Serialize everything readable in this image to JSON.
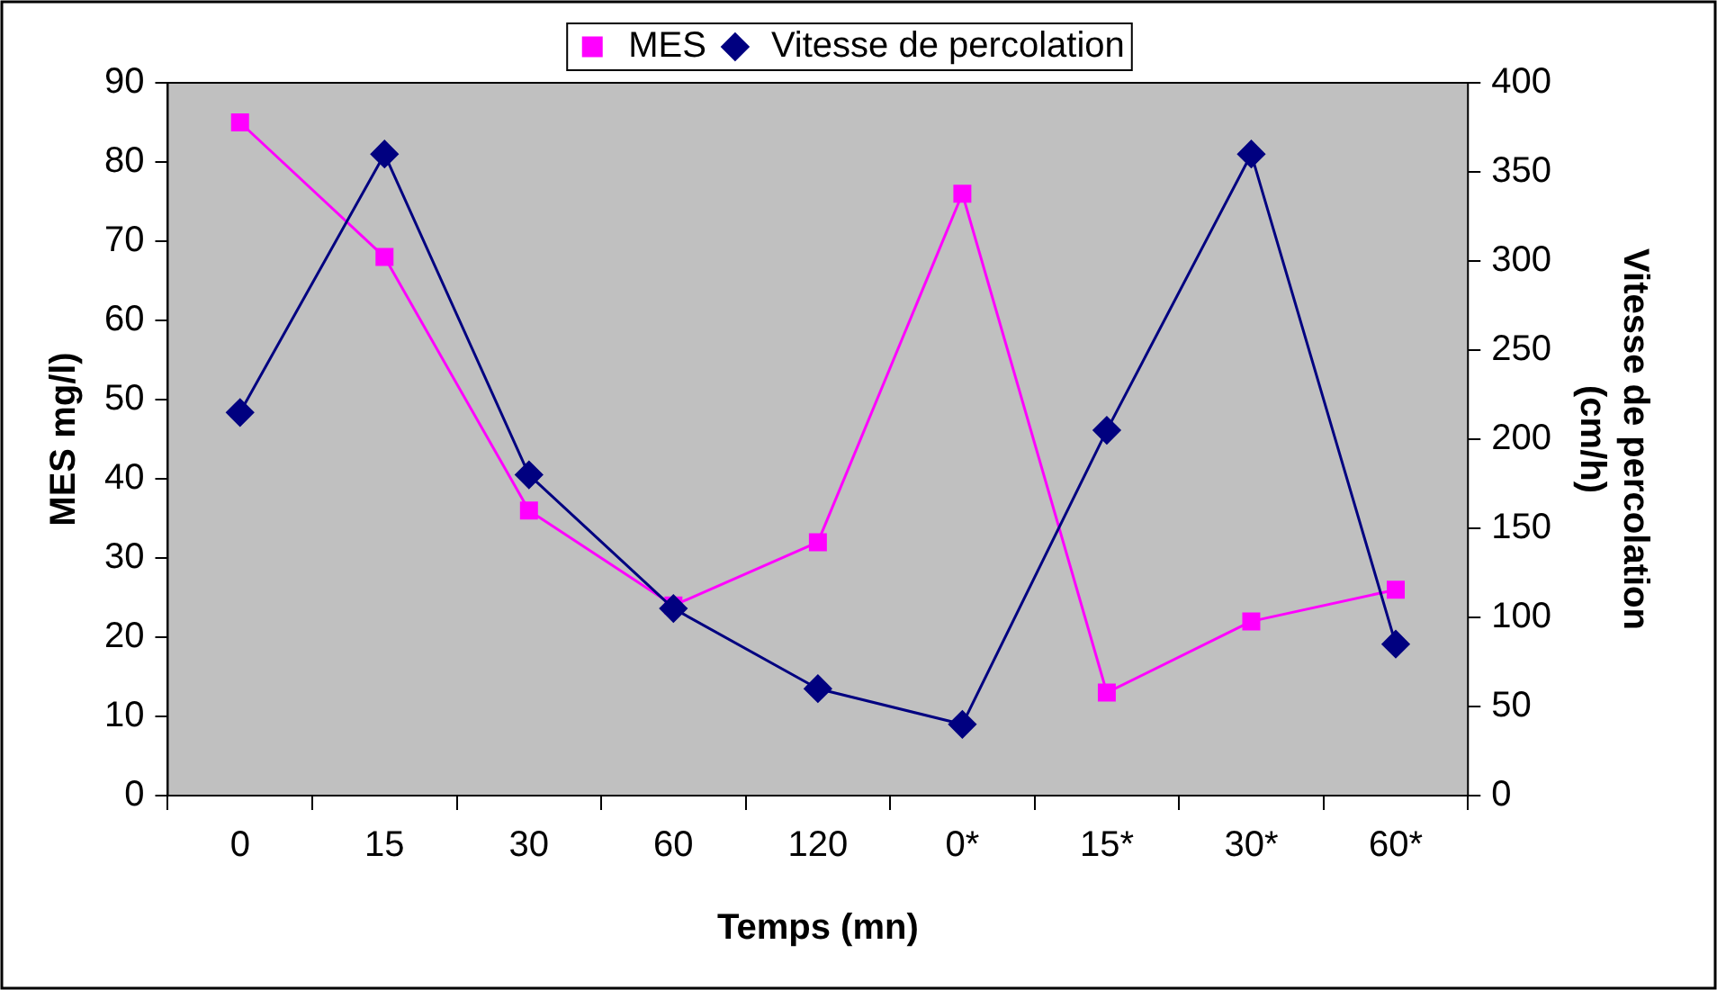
{
  "chart_data": {
    "type": "line",
    "categories": [
      "0",
      "15",
      "30",
      "60",
      "120",
      "0*",
      "15*",
      "30*",
      "60*"
    ],
    "xlabel": "Temps (mn)",
    "ylabel": "MES mg/l)",
    "y2label": "Vitesse de percolation (cm/h)",
    "ylim": [
      0,
      90
    ],
    "yticks": [
      0,
      10,
      20,
      30,
      40,
      50,
      60,
      70,
      80,
      90
    ],
    "y2lim": [
      0,
      400
    ],
    "y2ticks": [
      0,
      50,
      100,
      150,
      200,
      250,
      300,
      350,
      400
    ],
    "legend": "top",
    "line_style": "solid",
    "series": [
      {
        "name": "MES",
        "color": "#ff00ff",
        "marker": "square",
        "values": [
          85,
          68,
          36,
          24,
          32,
          76,
          13,
          22,
          26
        ]
      },
      {
        "name": "Vitesse de percolation",
        "color": "#000080",
        "marker": "diamond",
        "axis": "y2",
        "values": [
          215,
          360,
          180,
          105,
          60,
          40,
          205,
          360,
          85
        ]
      }
    ]
  }
}
